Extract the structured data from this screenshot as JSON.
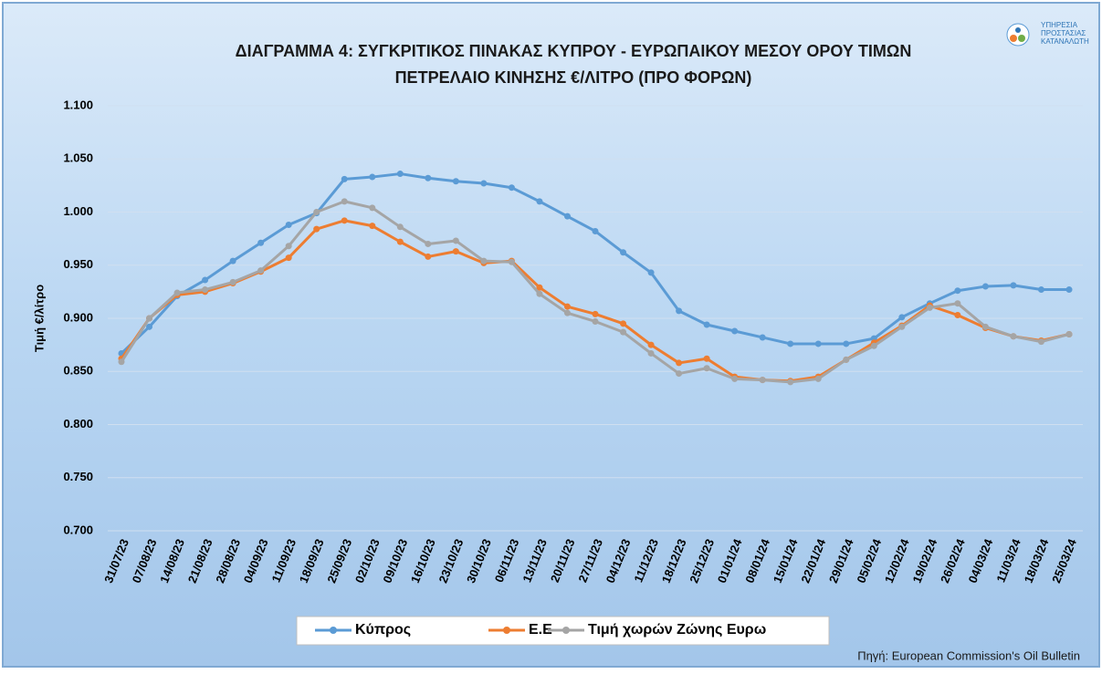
{
  "chart_data": {
    "type": "line",
    "title": [
      "ΔΙΑΓΡΑΜΜΑ 4: ΣΥΓΚΡΙΤΙΚΟΣ ΠΙΝΑΚΑΣ ΚΥΠΡΟΥ - ΕΥΡΩΠΑΙΚΟΥ ΜΕΣΟΥ ΟΡΟΥ ΤΙΜΩΝ",
      "ΠΕΤΡΕΛΑΙΟ ΚΙΝΗΣΗΣ €/ΛΙΤΡΟ (ΠΡΟ ΦΟΡΩΝ)"
    ],
    "y_label": "Τιμή €/λίτρο",
    "source": "Πηγή: European Commission's Oil Bulletin",
    "logo_text": [
      "ΥΠΗΡΕΣΙΑ",
      "ΠΡΟΣΤΑΣΙΑΣ",
      "ΚΑΤΑΝΑΛΩΤΗ"
    ],
    "categories": [
      "31/07/23",
      "07/08/23",
      "14/08/23",
      "21/08/23",
      "28/08/23",
      "04/09/23",
      "11/09/23",
      "18/09/23",
      "25/09/23",
      "02/10/23",
      "09/10/23",
      "16/10/23",
      "23/10/23",
      "30/10/23",
      "06/11/23",
      "13/11/23",
      "20/11/23",
      "27/11/23",
      "04/12/23",
      "11/12/23",
      "18/12/23",
      "25/12/23",
      "01/01/24",
      "08/01/24",
      "15/01/24",
      "22/01/24",
      "29/01/24",
      "05/02/24",
      "12/02/24",
      "19/02/24",
      "26/02/24",
      "04/03/24",
      "11/03/24",
      "18/03/24",
      "25/03/24"
    ],
    "series": [
      {
        "name": "Κύπρος",
        "color": "#5b9bd5",
        "values": [
          0.867,
          0.892,
          0.921,
          0.936,
          0.954,
          0.971,
          0.988,
          0.999,
          1.031,
          1.033,
          1.036,
          1.032,
          1.029,
          1.027,
          1.023,
          1.01,
          0.996,
          0.982,
          0.962,
          0.943,
          0.907,
          0.894,
          0.888,
          0.882,
          0.876,
          0.876,
          0.876,
          0.881,
          0.901,
          0.914,
          0.926,
          0.93,
          0.931,
          0.927,
          0.927
        ]
      },
      {
        "name": "Ε.Ε",
        "color": "#ed7d31",
        "values": [
          0.862,
          0.9,
          0.922,
          0.925,
          0.933,
          0.944,
          0.957,
          0.984,
          0.992,
          0.987,
          0.972,
          0.958,
          0.963,
          0.952,
          0.954,
          0.929,
          0.911,
          0.904,
          0.895,
          0.875,
          0.858,
          0.862,
          0.845,
          0.842,
          0.841,
          0.845,
          0.861,
          0.877,
          0.893,
          0.912,
          0.903,
          0.891,
          0.883,
          0.879,
          0.885
        ]
      },
      {
        "name": "Τιμή χωρών Ζώνης Ευρω",
        "color": "#a5a5a5",
        "values": [
          0.859,
          0.9,
          0.924,
          0.927,
          0.934,
          0.945,
          0.968,
          1.0,
          1.01,
          1.004,
          0.986,
          0.97,
          0.973,
          0.954,
          0.953,
          0.923,
          0.905,
          0.897,
          0.887,
          0.867,
          0.848,
          0.853,
          0.843,
          0.842,
          0.84,
          0.843,
          0.861,
          0.874,
          0.892,
          0.91,
          0.914,
          0.892,
          0.883,
          0.878,
          0.885
        ]
      }
    ],
    "ylim": [
      0.7,
      1.1
    ],
    "yticks": [
      {
        "value": 0.7,
        "label": "0.700"
      },
      {
        "value": 0.75,
        "label": "0.750"
      },
      {
        "value": 0.8,
        "label": "0.800"
      },
      {
        "value": 0.85,
        "label": "0.850"
      },
      {
        "value": 0.9,
        "label": "0.900"
      },
      {
        "value": 0.95,
        "label": "0.950"
      },
      {
        "value": 1.0,
        "label": "1.000"
      },
      {
        "value": 1.05,
        "label": "1.050"
      },
      {
        "value": 1.1,
        "label": "1.100"
      }
    ],
    "grid": true,
    "legend": "bottom"
  }
}
